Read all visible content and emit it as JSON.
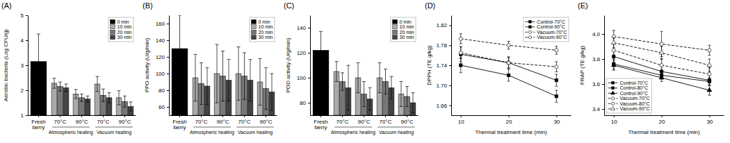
{
  "chart_data": [
    {
      "type": "bar",
      "title": "(A)",
      "ylabel": "Aerobic bacteria (Log CFU/g)",
      "categories": [
        "Fresh\nberry",
        "70°C",
        "90°C",
        "70°C",
        "90°C"
      ],
      "annotations": [
        "Atmospheric heating",
        "Vacuum heating"
      ],
      "series": [
        {
          "name": "0 min",
          "color": "#000000",
          "values": [
            3.15,
            null,
            null,
            null,
            null
          ],
          "errors": [
            1.1,
            null,
            null,
            null,
            null
          ]
        },
        {
          "name": "10 min",
          "color": "#aaaaaa",
          "values": [
            null,
            2.28,
            1.85,
            2.25,
            1.7
          ],
          "errors": [
            null,
            0.2,
            0.18,
            0.3,
            0.28
          ]
        },
        {
          "name": "20 min",
          "color": "#777777",
          "values": [
            null,
            2.15,
            1.7,
            1.8,
            1.55
          ],
          "errors": [
            null,
            0.18,
            0.15,
            0.25,
            0.22
          ]
        },
        {
          "name": "30 min",
          "color": "#444444",
          "values": [
            null,
            2.1,
            1.65,
            1.7,
            1.35
          ],
          "errors": [
            null,
            0.15,
            0.12,
            0.2,
            0.18
          ]
        }
      ],
      "ylim": [
        1,
        5
      ],
      "yticks": [
        1,
        2,
        3,
        4,
        5
      ],
      "legend": "upper right",
      "grid": false
    },
    {
      "type": "bar",
      "title": "(B)",
      "ylabel": "PPO activity (U/g/min)",
      "categories": [
        "Fresh\nberry",
        "70°C",
        "90°C",
        "70°C",
        "90°C"
      ],
      "annotations": [
        "Atmospheric heating",
        "Vacuum heating"
      ],
      "series": [
        {
          "name": "0 min",
          "color": "#000000",
          "values": [
            130,
            null,
            null,
            null,
            null
          ],
          "errors": [
            40,
            null,
            null,
            null,
            null
          ]
        },
        {
          "name": "10 min",
          "color": "#aaaaaa",
          "values": [
            null,
            95,
            100,
            100,
            90
          ],
          "errors": [
            null,
            28,
            35,
            32,
            28
          ]
        },
        {
          "name": "20 min",
          "color": "#777777",
          "values": [
            null,
            88,
            97,
            97,
            82
          ],
          "errors": [
            null,
            25,
            30,
            28,
            25
          ]
        },
        {
          "name": "30 min",
          "color": "#444444",
          "values": [
            null,
            85,
            92,
            92,
            78
          ],
          "errors": [
            null,
            22,
            25,
            25,
            22
          ]
        }
      ],
      "ylim": [
        50,
        170
      ],
      "yticks": [
        60,
        80,
        100,
        120,
        140,
        160
      ],
      "legend": "upper right",
      "grid": false
    },
    {
      "type": "bar",
      "title": "(C)",
      "ylabel": "POD activity (U/g/min)",
      "categories": [
        "Fresh\nberry",
        "70°C",
        "90°C",
        "70°C",
        "90°C"
      ],
      "annotations": [
        "Atmospheric heating",
        "Vacuum heating"
      ],
      "series": [
        {
          "name": "0 min",
          "color": "#000000",
          "values": [
            122,
            null,
            null,
            null,
            null
          ],
          "errors": [
            15,
            null,
            null,
            null,
            null
          ]
        },
        {
          "name": "10 min",
          "color": "#aaaaaa",
          "values": [
            null,
            105,
            100,
            100,
            87
          ],
          "errors": [
            null,
            8,
            12,
            12,
            10
          ]
        },
        {
          "name": "20 min",
          "color": "#777777",
          "values": [
            null,
            97,
            87,
            97,
            85
          ],
          "errors": [
            null,
            7,
            10,
            10,
            8
          ]
        },
        {
          "name": "30 min",
          "color": "#444444",
          "values": [
            null,
            92,
            83,
            92,
            80
          ],
          "errors": [
            null,
            18,
            9,
            9,
            8
          ]
        }
      ],
      "ylim": [
        70,
        150
      ],
      "yticks": [
        80,
        100,
        120,
        140
      ],
      "legend": "upper right",
      "grid": false
    },
    {
      "type": "line",
      "title": "(D)",
      "xlabel": "Thermal treatment time (min)",
      "ylabel": "DPPH (TE g/kg)",
      "x": [
        10,
        20,
        30
      ],
      "series": [
        {
          "name": "Control-70°C",
          "color": "#000000",
          "marker": "square",
          "line_style": "solid",
          "values": [
            1.762,
            1.745,
            1.71
          ],
          "errors": [
            0.015,
            0.012,
            0.012
          ]
        },
        {
          "name": "Control-90°C",
          "color": "#000000",
          "marker": "square",
          "line_style": "solid",
          "values": [
            1.74,
            1.72,
            1.678
          ],
          "errors": [
            0.015,
            0.012,
            0.012
          ]
        },
        {
          "name": "Vacuum-70°C",
          "color": "#000000",
          "marker": "circle-open",
          "line_style": "dashed",
          "values": [
            1.765,
            1.745,
            1.737
          ],
          "errors": [
            0.012,
            0.01,
            0.01
          ]
        },
        {
          "name": "Vacuum-90°C",
          "color": "#000000",
          "marker": "circle-open",
          "line_style": "dashed",
          "values": [
            1.793,
            1.78,
            1.77
          ],
          "errors": [
            0.01,
            0.008,
            0.008
          ]
        }
      ],
      "xlim": [
        8,
        33
      ],
      "xticks": [
        10,
        20,
        30
      ],
      "ylim": [
        1.64,
        1.84
      ],
      "yticks": [
        1.66,
        {
          "value": 1.7,
          "label": "1.70"
        },
        1.74,
        1.78,
        1.82
      ],
      "legend": "upper right",
      "grid": false
    },
    {
      "type": "line",
      "title": "(E)",
      "xlabel": "Thermal treatment time (min)",
      "ylabel": "FRAP (TE g/kg)",
      "x": [
        10,
        20,
        30
      ],
      "series": [
        {
          "name": "Control-70°C",
          "color": "#000000",
          "marker": "square",
          "line_style": "solid",
          "values": [
            3.82,
            3.7,
            3.63
          ],
          "errors": [
            0.05,
            0.04,
            0.04
          ]
        },
        {
          "name": "Control-80°C",
          "color": "#000000",
          "marker": "square",
          "line_style": "solid",
          "values": [
            3.76,
            3.67,
            3.62
          ],
          "errors": [
            0.04,
            0.03,
            0.03
          ]
        },
        {
          "name": "Control-90°C",
          "color": "#000000",
          "marker": "triangle",
          "line_style": "solid",
          "values": [
            3.75,
            3.65,
            3.55
          ],
          "errors": [
            0.04,
            0.03,
            0.04
          ]
        },
        {
          "name": "Vacuum-70°C",
          "color": "#000000",
          "marker": "circle-open",
          "line_style": "dashed",
          "values": [
            3.87,
            3.75,
            3.68
          ],
          "errors": [
            0.05,
            0.05,
            0.05
          ]
        },
        {
          "name": "Vacuum-80°C",
          "color": "#000000",
          "marker": "circle-open",
          "line_style": "dashed",
          "values": [
            3.98,
            3.92,
            3.87
          ],
          "errors": [
            0.05,
            0.1,
            0.04
          ]
        },
        {
          "name": "Vacuum-90°C",
          "color": "#000000",
          "marker": "triangle-open",
          "line_style": "dashed",
          "values": [
            3.93,
            3.85,
            3.75
          ],
          "errors": [
            0.04,
            0.05,
            0.05
          ]
        }
      ],
      "xlim": [
        8,
        33
      ],
      "xticks": [
        10,
        20,
        30
      ],
      "ylim": [
        3.35,
        4.15
      ],
      "yticks": [
        3.4,
        3.6,
        3.8,
        {
          "value": 4.0,
          "label": "4.0"
        }
      ],
      "legend": "lower left",
      "grid": false
    }
  ]
}
